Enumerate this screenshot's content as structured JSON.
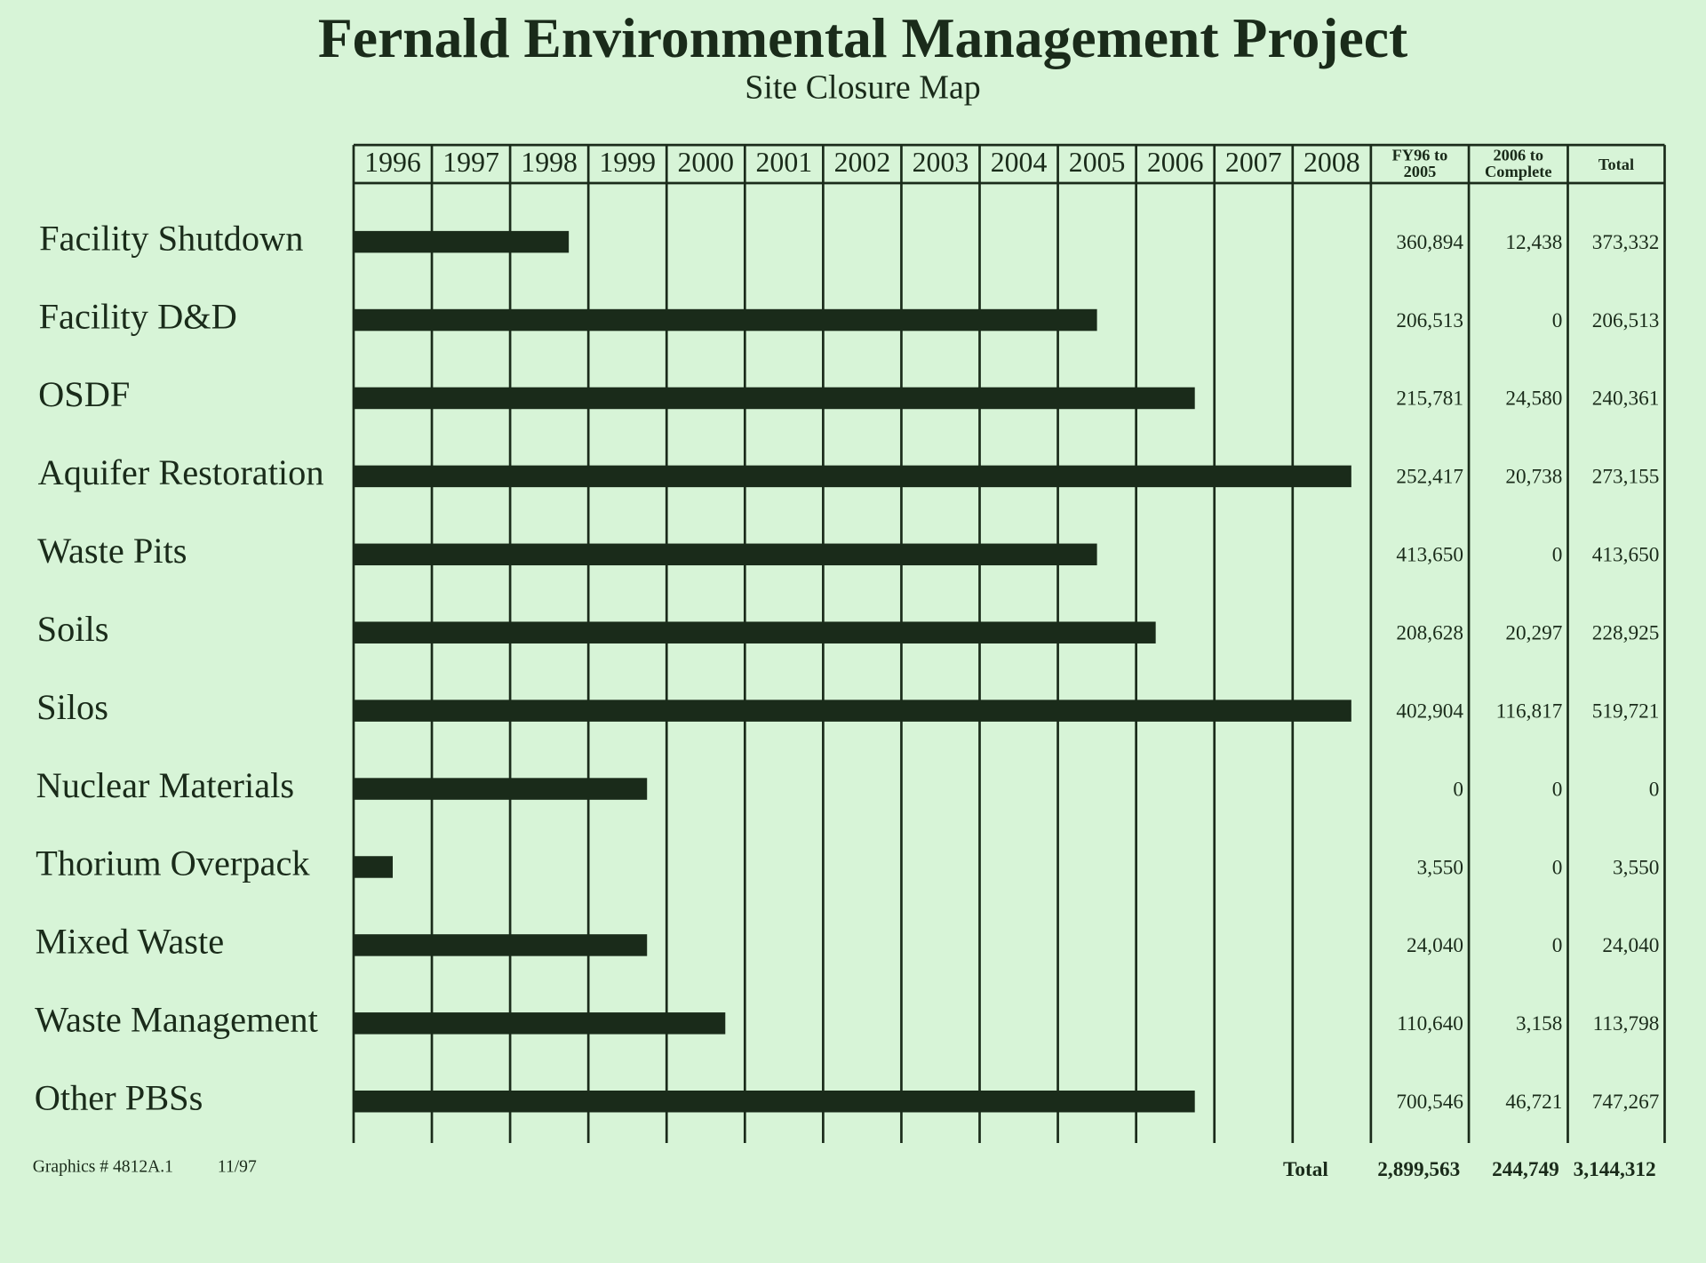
{
  "chart_data": {
    "type": "gantt",
    "title": "Fernald Environmental Management Project",
    "subtitle": "Site Closure Map",
    "categories": [
      "Facility Shutdown",
      "Facility D&D",
      "OSDF",
      "Aquifer Restoration",
      "Waste Pits",
      "Soils",
      "Silos",
      "Nuclear Materials",
      "Thorium Overpack",
      "Mixed Waste",
      "Waste Management",
      "Other PBSs"
    ],
    "values": [
      1998.75,
      2005.5,
      2006.75,
      2008.75,
      2005.5,
      2006.25,
      2008.75,
      1999.75,
      1996.5,
      1999.75,
      2000.75,
      2006.75
    ],
    "color": "#1a2b1a",
    "xlim": [
      1996,
      2009
    ],
    "xticks": [
      1996,
      1997,
      1998,
      1999,
      2000,
      2001,
      2002,
      2003,
      2004,
      2005,
      2006,
      2007,
      2008
    ],
    "grid": true,
    "table": {
      "columns": [
        [
          "FY96 to",
          "2005"
        ],
        [
          "2006 to",
          "Complete"
        ],
        [
          "Total"
        ]
      ],
      "rows": [
        [
          "360,894",
          "12,438",
          "373,332"
        ],
        [
          "206,513",
          "0",
          "206,513"
        ],
        [
          "215,781",
          "24,580",
          "240,361"
        ],
        [
          "252,417",
          "20,738",
          "273,155"
        ],
        [
          "413,650",
          "0",
          "413,650"
        ],
        [
          "208,628",
          "20,297",
          "228,925"
        ],
        [
          "402,904",
          "116,817",
          "519,721"
        ],
        [
          "0",
          "0",
          "0"
        ],
        [
          "3,550",
          "0",
          "3,550"
        ],
        [
          "24,040",
          "0",
          "24,040"
        ],
        [
          "110,640",
          "3,158",
          "113,798"
        ],
        [
          "700,546",
          "46,721",
          "747,267"
        ]
      ],
      "total_label": "Total",
      "totals": [
        "2,899,563",
        "244,749",
        "3,144,312"
      ]
    },
    "footer": [
      "Graphics # 4812A.1",
      "11/97"
    ]
  }
}
